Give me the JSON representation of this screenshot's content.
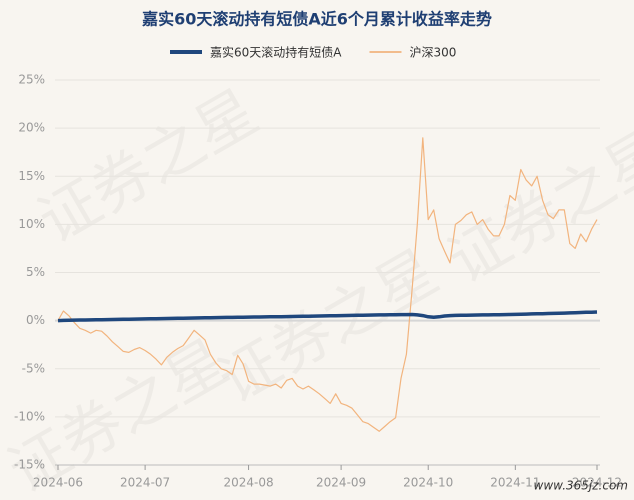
{
  "chart_data": {
    "type": "line",
    "title": "嘉实60天滚动持有短债A近6个月累计收益率走势",
    "watermark": "证券之星",
    "source": "www.365jz.com",
    "categories": [
      "2024-06",
      null,
      null,
      null,
      null,
      null,
      null,
      null,
      null,
      null,
      null,
      null,
      null,
      null,
      null,
      null,
      "2024-07",
      null,
      null,
      null,
      null,
      null,
      null,
      null,
      null,
      null,
      null,
      null,
      null,
      null,
      null,
      null,
      null,
      null,
      null,
      "2024-08",
      null,
      null,
      null,
      null,
      null,
      null,
      null,
      null,
      null,
      null,
      null,
      null,
      null,
      null,
      null,
      null,
      "2024-09",
      null,
      null,
      null,
      null,
      null,
      null,
      null,
      null,
      null,
      null,
      null,
      null,
      null,
      null,
      null,
      "2024-10",
      null,
      null,
      null,
      null,
      null,
      null,
      null,
      null,
      null,
      null,
      null,
      null,
      null,
      null,
      null,
      "2024-11",
      null,
      null,
      null,
      null,
      null,
      null,
      null,
      null,
      null,
      null,
      null,
      null,
      null,
      null,
      "2024-12"
    ],
    "series": [
      {
        "name": "嘉实60天滚动持有短债A",
        "color": "#1f477d",
        "width": 3.5,
        "values": [
          0.0,
          0.02,
          0.03,
          0.05,
          0.06,
          0.07,
          0.08,
          0.09,
          0.1,
          0.11,
          0.12,
          0.13,
          0.14,
          0.15,
          0.16,
          0.17,
          0.18,
          0.19,
          0.2,
          0.21,
          0.22,
          0.23,
          0.24,
          0.25,
          0.26,
          0.27,
          0.28,
          0.29,
          0.3,
          0.31,
          0.32,
          0.33,
          0.34,
          0.35,
          0.36,
          0.37,
          0.38,
          0.38,
          0.39,
          0.4,
          0.4,
          0.41,
          0.42,
          0.43,
          0.44,
          0.45,
          0.46,
          0.47,
          0.48,
          0.49,
          0.5,
          0.51,
          0.52,
          0.53,
          0.54,
          0.55,
          0.56,
          0.57,
          0.58,
          0.59,
          0.6,
          0.61,
          0.62,
          0.63,
          0.63,
          0.64,
          0.6,
          0.52,
          0.4,
          0.35,
          0.4,
          0.48,
          0.52,
          0.54,
          0.55,
          0.56,
          0.57,
          0.58,
          0.59,
          0.6,
          0.61,
          0.62,
          0.63,
          0.64,
          0.65,
          0.67,
          0.68,
          0.7,
          0.71,
          0.72,
          0.74,
          0.75,
          0.77,
          0.78,
          0.8,
          0.82,
          0.84,
          0.86,
          0.88,
          0.9
        ]
      },
      {
        "name": "沪深300",
        "color": "#f2b47e",
        "width": 1.2,
        "values": [
          0,
          1.0,
          0.5,
          -0.2,
          -0.8,
          -1.0,
          -1.3,
          -1.0,
          -1.1,
          -1.6,
          -2.2,
          -2.7,
          -3.2,
          -3.3,
          -3.0,
          -2.8,
          -3.1,
          -3.5,
          -4.0,
          -4.6,
          -3.8,
          -3.3,
          -2.9,
          -2.6,
          -1.8,
          -1.0,
          -1.5,
          -2.0,
          -3.5,
          -4.4,
          -5.0,
          -5.2,
          -5.6,
          -3.6,
          -4.5,
          -6.3,
          -6.6,
          -6.6,
          -6.7,
          -6.8,
          -6.6,
          -7.0,
          -6.2,
          -6.0,
          -6.8,
          -7.1,
          -6.8,
          -7.2,
          -7.6,
          -8.1,
          -8.6,
          -7.6,
          -8.6,
          -8.8,
          -9.1,
          -9.8,
          -10.5,
          -10.7,
          -11.1,
          -11.5,
          -11.0,
          -10.5,
          -10.1,
          -6.0,
          -3.5,
          3.0,
          10.0,
          19.0,
          10.5,
          11.5,
          8.5,
          7.2,
          6.0,
          10.0,
          10.4,
          11.0,
          11.3,
          10.0,
          10.5,
          9.5,
          8.8,
          8.8,
          10.0,
          13.0,
          12.5,
          15.7,
          14.6,
          14.0,
          15.0,
          12.5,
          11.0,
          10.6,
          11.5,
          11.5,
          8.0,
          7.5,
          9.0,
          8.2,
          9.5,
          10.5
        ]
      }
    ],
    "ylim": [
      -15,
      25
    ],
    "yticks": [
      {
        "value": -15,
        "label": "-15%"
      },
      {
        "value": -10,
        "label": "-10%"
      },
      {
        "value": -5,
        "label": "-5%"
      },
      {
        "value": 0,
        "label": "0%"
      },
      {
        "value": 5,
        "label": "5%"
      },
      {
        "value": 10,
        "label": "10%"
      },
      {
        "value": 15,
        "label": "15%"
      },
      {
        "value": 20,
        "label": "20%"
      },
      {
        "value": 25,
        "label": "25%"
      }
    ],
    "grid": true
  }
}
